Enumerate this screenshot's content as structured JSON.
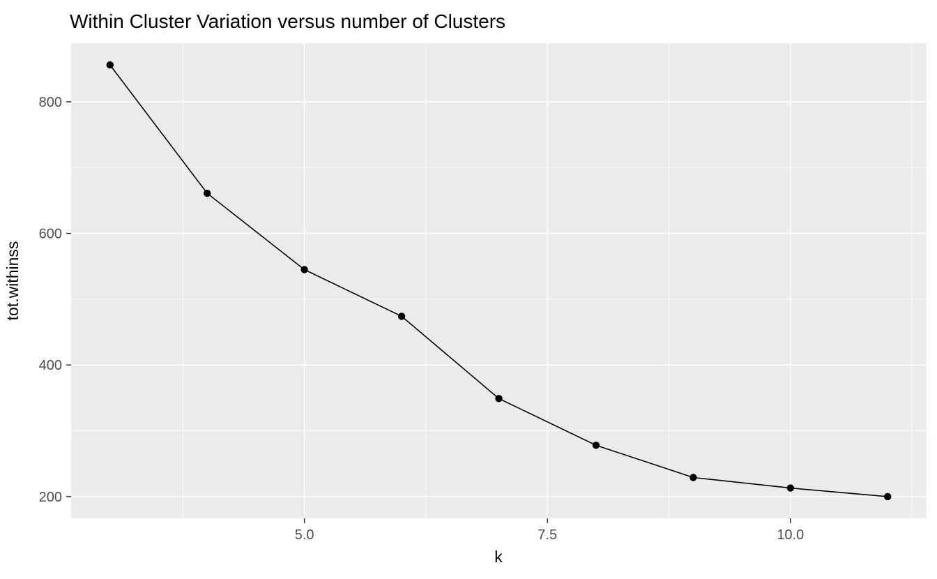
{
  "chart_data": {
    "type": "line",
    "title": "Within Cluster Variation versus number of Clusters",
    "xlabel": "k",
    "ylabel": "tot.withinss",
    "x": [
      3,
      4,
      5,
      6,
      7,
      8,
      9,
      10,
      11
    ],
    "y": [
      856,
      661,
      545,
      474,
      349,
      278,
      229,
      213,
      200
    ],
    "series_name": "tot.withinss by k",
    "xlim": [
      2.6,
      11.4
    ],
    "ylim": [
      167,
      889
    ],
    "x_ticks": {
      "major": [
        5.0,
        7.5,
        10.0
      ],
      "labels": [
        "5.0",
        "7.5",
        "10.0"
      ],
      "minor": [
        3.75,
        6.25,
        8.75,
        11.25
      ]
    },
    "y_ticks": {
      "major": [
        200,
        400,
        600,
        800
      ],
      "labels": [
        "200",
        "400",
        "600",
        "800"
      ],
      "minor": [
        300,
        500,
        700
      ]
    },
    "grid": "on",
    "legend": "none",
    "marker": "filled-circle",
    "style": {
      "theme": "ggplot2-grey",
      "background": "#FFFFFF",
      "panel_bg": "#EBEBEB",
      "grid_color": "#FFFFFF",
      "line_color": "#000000",
      "point_color": "#000000",
      "tick_mark_color": "#333333",
      "tick_label_color": "#4D4D4D",
      "title_color": "#000000"
    }
  }
}
